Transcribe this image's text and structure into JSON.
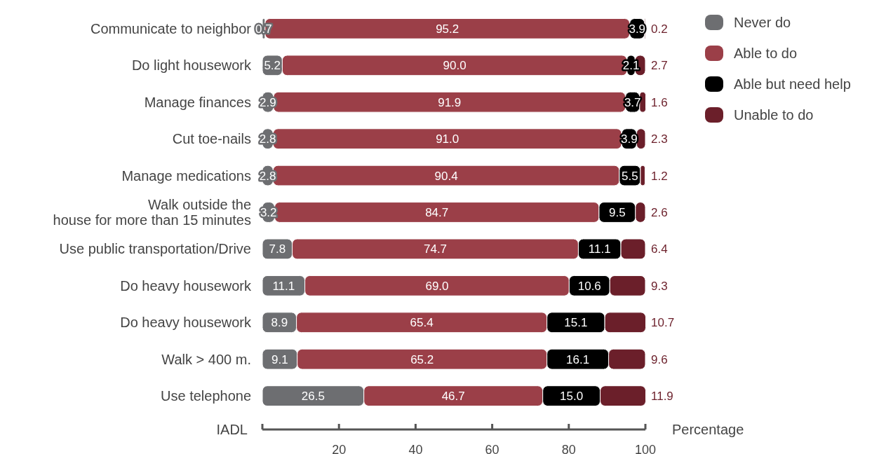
{
  "chart_data": {
    "type": "bar",
    "orientation": "horizontal",
    "stacked": true,
    "legend": "top right",
    "xlabel": "Percentage",
    "ylabel": "IADL",
    "categories": [
      "Communicate to neighbor",
      "Do light housework",
      "Manage finances",
      "Cut toe-nails",
      "Manage medications",
      "Walk outside the\nhouse for more than 15 minutes",
      "Use public transportation/Drive",
      "Do heavy housework",
      "Do heavy housework",
      "Walk > 400 m.",
      "Use telephone"
    ],
    "series": [
      {
        "name": "Never do",
        "color": "#6d6e71",
        "values": [
          0.7,
          5.2,
          2.9,
          2.8,
          2.8,
          3.2,
          7.8,
          11.1,
          8.9,
          9.1,
          26.5
        ],
        "value_labels": [
          "0.7",
          "5.2",
          "2.9",
          "2.8",
          "2.8",
          "3.2",
          "7.8",
          "11.1",
          "8.9",
          "9.1",
          "26.5"
        ]
      },
      {
        "name": "Able to do",
        "color": "#9b3f48",
        "values": [
          95.2,
          90.0,
          91.9,
          91.0,
          90.4,
          84.7,
          74.7,
          69.0,
          65.4,
          65.2,
          46.7
        ],
        "value_labels": [
          "95.2",
          "90.0",
          "91.9",
          "91.0",
          "90.4",
          "84.7",
          "74.7",
          "69.0",
          "65.4",
          "65.2",
          "46.7"
        ]
      },
      {
        "name": "Able but need help",
        "color": "#000000",
        "values": [
          3.9,
          2.1,
          3.7,
          3.9,
          5.5,
          9.5,
          11.1,
          10.6,
          15.1,
          16.1,
          15.0
        ],
        "value_labels": [
          "3.9",
          "2.1",
          "3.7",
          "3.9",
          "5.5",
          "9.5",
          "11.1",
          "10.6",
          "15.1",
          "16.1",
          "15.0"
        ]
      },
      {
        "name": "Unable to do",
        "color": "#6b1f2a",
        "values": [
          0.2,
          2.7,
          1.6,
          2.3,
          1.2,
          2.6,
          6.4,
          9.3,
          10.7,
          9.6,
          11.9
        ],
        "value_labels": [
          "0.2",
          "2.7",
          "1.6",
          "2.3",
          "1.2",
          "2.6",
          "6.4",
          "9.3",
          "10.7",
          "9.6",
          "11.9"
        ]
      }
    ],
    "xlim": [
      0,
      100
    ],
    "xticks": [
      {
        "value": 0,
        "label": null
      },
      20,
      40,
      60,
      80,
      100
    ]
  }
}
